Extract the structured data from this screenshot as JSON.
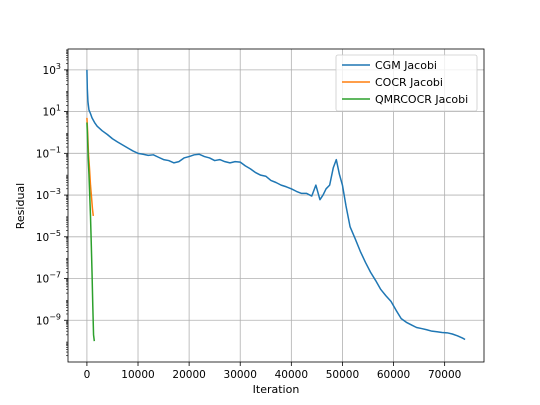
{
  "chart_data": {
    "type": "line",
    "xlabel": "Iteration",
    "ylabel": "Residual",
    "xscale": "linear",
    "yscale": "log",
    "xlim": [
      -3700,
      77700
    ],
    "ylim": [
      1e-11,
      10000.0
    ],
    "xticks": [
      0,
      10000,
      20000,
      30000,
      40000,
      50000,
      60000,
      70000
    ],
    "xtick_labels": [
      "0",
      "10000",
      "20000",
      "30000",
      "40000",
      "50000",
      "60000",
      "70000"
    ],
    "ytick_exponents": [
      3,
      1,
      -1,
      -3,
      -5,
      -7,
      -9
    ],
    "grid": true,
    "legend_position": "top-right",
    "series": [
      {
        "name": "CGM Jacobi",
        "color": "#1f77b4",
        "x": [
          0,
          80,
          200,
          400,
          700,
          1000,
          1500,
          2000,
          3000,
          4000,
          5000,
          6000,
          7000,
          8000,
          9000,
          10000,
          11000,
          12000,
          13000,
          14000,
          15000,
          16000,
          17000,
          18000,
          19000,
          20000,
          21000,
          22000,
          23000,
          24000,
          25000,
          26000,
          27000,
          28000,
          29000,
          30000,
          31000,
          32000,
          33000,
          34000,
          35000,
          36000,
          37000,
          38000,
          39000,
          40000,
          41000,
          42000,
          43000,
          44000,
          44800,
          45600,
          46200,
          46800,
          47500,
          48200,
          48800,
          49400,
          50000,
          50700,
          51500,
          52500,
          53500,
          54500,
          55500,
          56500,
          57500,
          58500,
          59500,
          60500,
          61500,
          62500,
          63500,
          64500,
          65500,
          66500,
          67500,
          68500,
          69500,
          70500,
          71500,
          72500,
          73500,
          74000
        ],
        "y": [
          1000,
          120,
          30,
          12,
          8,
          5,
          3,
          2,
          1.2,
          0.8,
          0.5,
          0.35,
          0.25,
          0.18,
          0.13,
          0.1,
          0.09,
          0.08,
          0.085,
          0.065,
          0.05,
          0.045,
          0.035,
          0.04,
          0.06,
          0.07,
          0.085,
          0.09,
          0.07,
          0.06,
          0.045,
          0.05,
          0.04,
          0.035,
          0.04,
          0.038,
          0.025,
          0.018,
          0.012,
          0.009,
          0.008,
          0.005,
          0.004,
          0.003,
          0.0025,
          0.002,
          0.0015,
          0.0012,
          0.0012,
          0.0009,
          0.003,
          0.0006,
          0.001,
          0.002,
          0.003,
          0.02,
          0.05,
          0.01,
          0.003,
          0.0003,
          3e-05,
          8e-06,
          2e-06,
          6e-07,
          2e-07,
          8e-08,
          3e-08,
          1.5e-08,
          8e-09,
          3e-09,
          1.2e-09,
          8e-10,
          6e-10,
          4.5e-10,
          4e-10,
          3.5e-10,
          3e-10,
          2.8e-10,
          2.6e-10,
          2.5e-10,
          2.2e-10,
          1.8e-10,
          1.4e-10,
          1.2e-10
        ]
      },
      {
        "name": "COCR Jacobi",
        "color": "#ff7f0e",
        "x": [
          0,
          150,
          300,
          500,
          700,
          900,
          1100,
          1250
        ],
        "y": [
          5,
          1,
          0.1,
          0.02,
          0.003,
          0.0008,
          0.0002,
          0.0001
        ]
      },
      {
        "name": "QMRCOCR Jacobi",
        "color": "#2ca02c",
        "x": [
          0,
          100,
          250,
          400,
          550,
          700,
          850,
          1000,
          1150,
          1300,
          1450
        ],
        "y": [
          3,
          0.8,
          0.06,
          0.01,
          0.001,
          0.0001,
          5e-06,
          2e-07,
          5e-09,
          2e-10,
          1e-10
        ]
      }
    ]
  }
}
